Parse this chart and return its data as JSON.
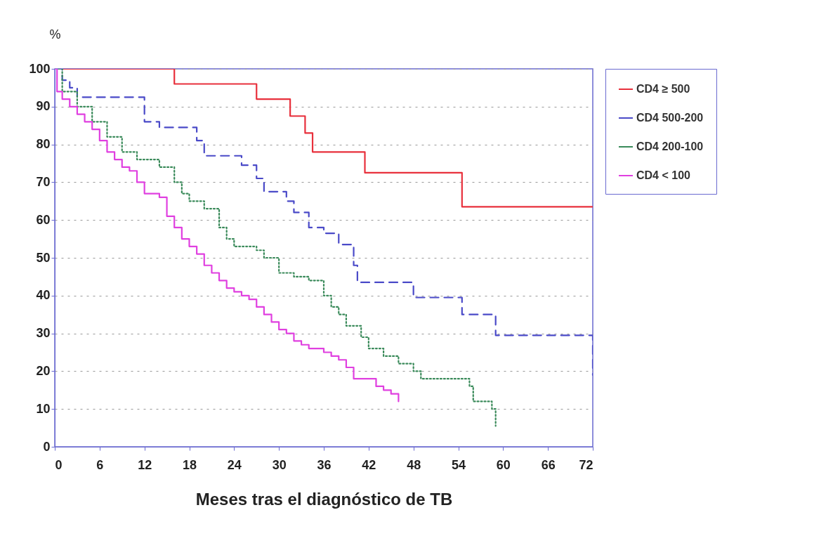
{
  "chart_data": {
    "type": "step",
    "xlabel": "Meses tras el diagnóstico de TB",
    "ylabel": "%",
    "xlim": [
      0,
      72
    ],
    "xticks": [
      0,
      6,
      12,
      18,
      24,
      30,
      36,
      42,
      48,
      54,
      60,
      66,
      72
    ],
    "ylim": [
      0,
      100
    ],
    "yticks": [
      0,
      10,
      20,
      30,
      40,
      50,
      60,
      70,
      80,
      90,
      100
    ],
    "grid": "y",
    "legend": "right",
    "marker": "none",
    "series": [
      {
        "name": "CD4 ≥ 500",
        "color": "#e8303c",
        "line_style": "solid",
        "x": [
          0,
          16,
          27,
          31.5,
          33.5,
          34.5,
          41.5,
          54.5,
          72
        ],
        "values": [
          100,
          96,
          92,
          87.5,
          83,
          78,
          72.5,
          63.5,
          63.5
        ]
      },
      {
        "name": "CD4 500-200",
        "color": "#4a4ac8",
        "line_style": "dashed",
        "x": [
          0,
          1,
          2,
          3,
          12,
          14,
          19,
          20,
          25,
          27,
          28,
          31,
          32,
          34,
          36,
          38,
          40,
          40.5,
          48,
          54.5,
          59,
          72
        ],
        "values": [
          100,
          97,
          95,
          92.5,
          86,
          84.5,
          81,
          77,
          74.5,
          71,
          67.5,
          65,
          62,
          58,
          56.5,
          53.5,
          48,
          43.5,
          39.5,
          35,
          29.5,
          19
        ]
      },
      {
        "name": "CD4 200-100",
        "color": "#3a8a5a",
        "line_style": "dotted",
        "x": [
          0,
          1,
          3,
          5,
          7,
          9,
          11,
          14,
          16,
          17,
          18,
          20,
          22,
          23,
          24,
          27,
          28,
          30,
          32,
          34,
          36,
          37,
          38,
          39,
          41,
          42,
          44,
          46,
          48,
          49,
          55,
          55.5,
          56,
          58.5,
          59
        ],
        "values": [
          100,
          94,
          90,
          86,
          82,
          78,
          76,
          74,
          70,
          67,
          65,
          63,
          58,
          55,
          53,
          52,
          50,
          46,
          45,
          44,
          40,
          37,
          35,
          32,
          29,
          26,
          24,
          22,
          20,
          18,
          18,
          16,
          12,
          10,
          5.5
        ]
      },
      {
        "name": "CD4 < 100",
        "color": "#e040e0",
        "line_style": "solid",
        "x": [
          0,
          0.3,
          1,
          2,
          3,
          4,
          5,
          6,
          7,
          8,
          9,
          10,
          11,
          12,
          14,
          15,
          16,
          17,
          18,
          19,
          20,
          21,
          22,
          23,
          24,
          25,
          26,
          27,
          28,
          29,
          30,
          31,
          32,
          33,
          34,
          36,
          37,
          38,
          39,
          40,
          42,
          43,
          44,
          45,
          46
        ],
        "values": [
          100,
          94,
          92,
          90,
          88,
          86,
          84,
          81,
          78,
          76,
          74,
          73,
          70,
          67,
          66,
          61,
          58,
          55,
          53,
          51,
          48,
          46,
          44,
          42,
          41,
          40,
          39,
          37,
          35,
          33,
          31,
          30,
          28,
          27,
          26,
          25,
          24,
          23,
          21,
          18,
          18,
          16,
          15,
          14,
          12
        ]
      }
    ]
  }
}
